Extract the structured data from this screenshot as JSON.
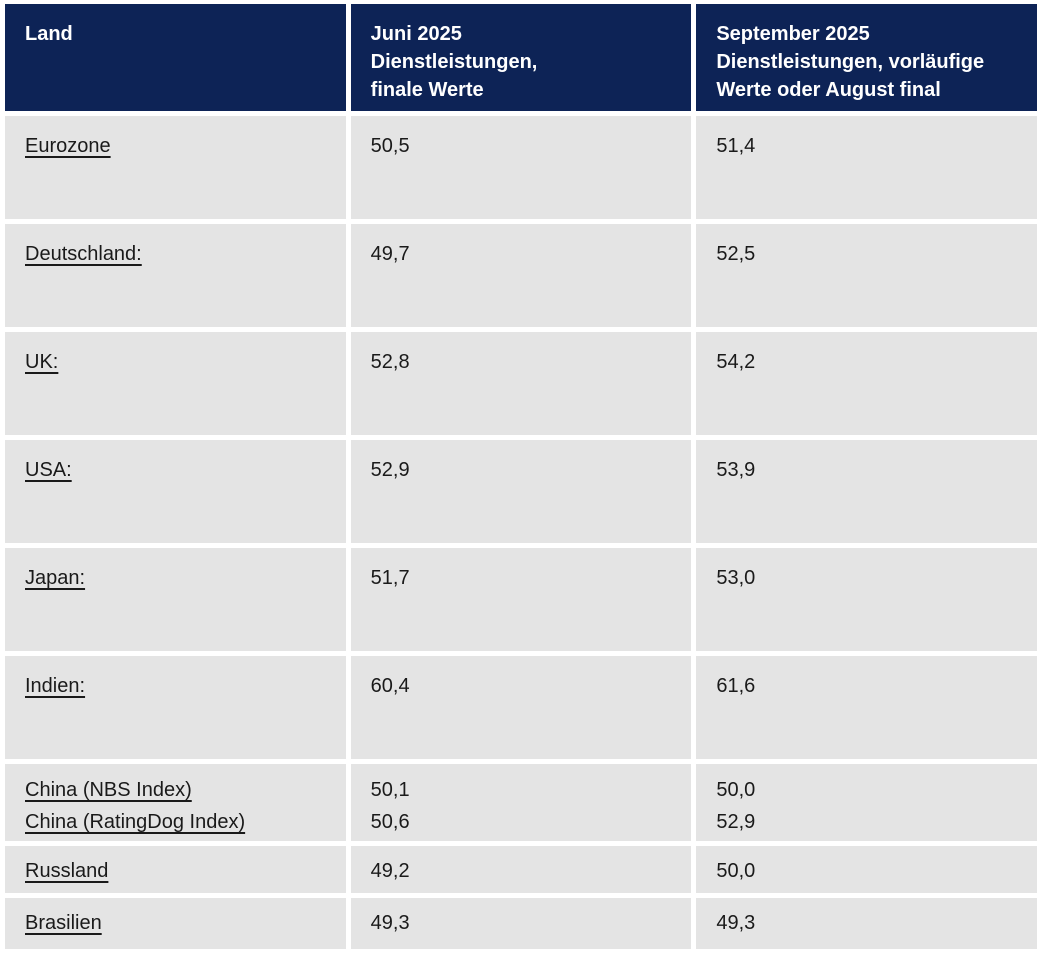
{
  "table": {
    "header": {
      "col_land": "Land",
      "col_juni": "Juni 2025\nDienstleistungen,\nfinale Werte",
      "col_september": "September 2025\nDienstleistungen, vorläufige\nWerte oder August final"
    },
    "rows": [
      {
        "land": "Eurozone",
        "juni": "50,5",
        "september": "51,4"
      },
      {
        "land": "Deutschland:",
        "juni": "49,7",
        "september": "52,5"
      },
      {
        "land": "UK:",
        "juni": "52,8",
        "september": "54,2"
      },
      {
        "land": "USA:",
        "juni": "52,9",
        "september": "53,9"
      },
      {
        "land": "Japan:",
        "juni": "51,7",
        "september": "53,0"
      },
      {
        "land": "Indien:",
        "juni": "60,4",
        "september": "61,6"
      },
      {
        "land": "China (NBS Index)\nChina (RatingDog Index)",
        "juni": "50,1\n50,6",
        "september": "50,0\n52,9"
      },
      {
        "land": "Russland",
        "juni": "49,2",
        "september": "50,0"
      },
      {
        "land": "Brasilien",
        "juni": "49,3",
        "september": "49,3"
      }
    ]
  },
  "colors": {
    "header_bg": "#0d2356",
    "row_bg": "#e4e4e4",
    "header_text": "#ffffff",
    "body_text": "#1a1a1a"
  }
}
